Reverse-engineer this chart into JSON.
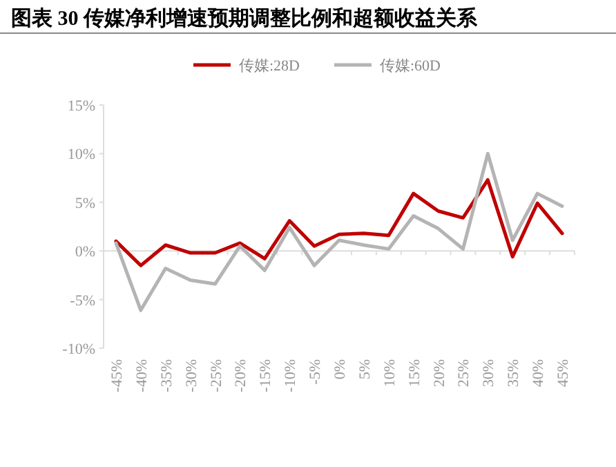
{
  "chart_data": {
    "type": "line",
    "title": "图表 30  传媒净利增速预期调整比例和超额收益关系",
    "categories": [
      "-45%",
      "-40%",
      "-35%",
      "-30%",
      "-25%",
      "-20%",
      "-15%",
      "-10%",
      "-5%",
      "0%",
      "5%",
      "10%",
      "15%",
      "20%",
      "25%",
      "30%",
      "35%",
      "40%",
      "45%"
    ],
    "series": [
      {
        "name": "传媒:28D",
        "color": "#c00000",
        "values": [
          1.0,
          -1.5,
          0.6,
          -0.2,
          -0.2,
          0.8,
          -0.8,
          3.1,
          0.5,
          1.7,
          1.8,
          1.6,
          5.9,
          4.1,
          3.4,
          7.3,
          -0.6,
          4.9,
          1.8
        ]
      },
      {
        "name": "传媒:60D",
        "color": "#b4b4b4",
        "values": [
          0.8,
          -6.1,
          -1.8,
          -3.0,
          -3.4,
          0.5,
          -2.0,
          2.4,
          -1.5,
          1.1,
          0.6,
          0.2,
          3.6,
          2.3,
          0.2,
          10.0,
          1.1,
          5.9,
          4.6
        ]
      }
    ],
    "ylim": [
      -10,
      15
    ],
    "yticks": [
      {
        "value": -10,
        "label": "-10%"
      },
      {
        "value": -5,
        "label": "-5%"
      },
      {
        "value": 0,
        "label": "0%"
      },
      {
        "value": 5,
        "label": "5%"
      },
      {
        "value": 10,
        "label": "10%"
      },
      {
        "value": 15,
        "label": "15%"
      }
    ],
    "legend": "top",
    "marker": "none",
    "line_style": "solid"
  }
}
